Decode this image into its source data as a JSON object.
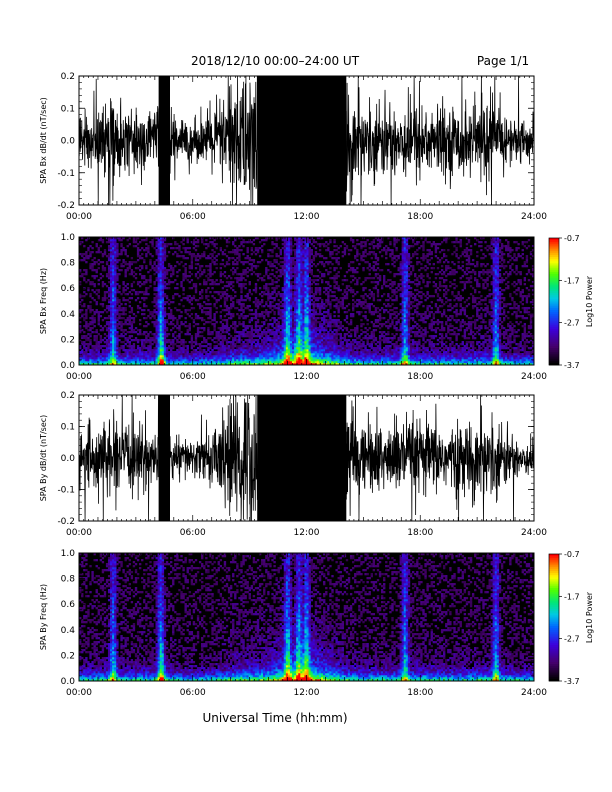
{
  "header": {
    "title": "2018/12/10   00:00–24:00 UT",
    "page": "Page 1/1"
  },
  "footer": {
    "xlabel": "Universal Time (hh:mm)"
  },
  "colorbar": {
    "label": "Log10 Power",
    "ticks": [
      "-0.7",
      "-1.7",
      "-2.7",
      "-3.7"
    ]
  },
  "chart_data": [
    {
      "type": "line",
      "title": "",
      "xlabel": "",
      "ylabel": "SPA Bx dB/dt (nT/sec)",
      "xlim": [
        0,
        24
      ],
      "ylim": [
        -0.2,
        0.2
      ],
      "x_ticks": [
        "00:00",
        "06:00",
        "12:00",
        "18:00",
        "24:00"
      ],
      "y_ticks": [
        "0.2",
        "0.1",
        "0.0",
        "-0.1",
        "-0.2"
      ],
      "series": [
        {
          "values": "dense time series of magnetic field rate of change, roughly ±0.1 nT/s, saturating at ±0.2 near 04:30 and 09:30–14:00 UT"
        }
      ]
    },
    {
      "type": "heatmap",
      "title": "",
      "xlabel": "",
      "ylabel": "SPA Bx Freq (Hz)",
      "xlim": [
        0,
        24
      ],
      "ylim": [
        0.0,
        1.0
      ],
      "x_ticks": [
        "00:00",
        "06:00",
        "12:00",
        "18:00",
        "24:00"
      ],
      "y_ticks": [
        "1.0",
        "0.8",
        "0.6",
        "0.4",
        "0.2",
        "0.0"
      ],
      "color_range": [
        -3.7,
        -0.7
      ],
      "color_label": "Log10 Power",
      "features": {
        "broadband_spikes_ut": [
          1.8,
          4.3,
          11.0,
          11.6,
          12.0,
          17.2,
          22.0
        ],
        "high_power_low_freq_ut": [
          4.3,
          9.5,
          12.5
        ]
      }
    },
    {
      "type": "line",
      "title": "",
      "xlabel": "",
      "ylabel": "SPA By dB/dt (nT/sec)",
      "xlim": [
        0,
        24
      ],
      "ylim": [
        -0.2,
        0.2
      ],
      "x_ticks": [
        "00:00",
        "06:00",
        "12:00",
        "18:00",
        "24:00"
      ],
      "y_ticks": [
        "0.2",
        "0.1",
        "0.0",
        "-0.1",
        "-0.2"
      ],
      "series": [
        {
          "values": "dense time series of magnetic field rate of change, roughly ±0.1 nT/s, saturating at ±0.2 near 04:30 and 09:30–14:00 UT"
        }
      ]
    },
    {
      "type": "heatmap",
      "title": "",
      "xlabel": "",
      "ylabel": "SPA By Freq (Hz)",
      "xlim": [
        0,
        24
      ],
      "ylim": [
        0.0,
        1.0
      ],
      "x_ticks": [
        "00:00",
        "06:00",
        "12:00",
        "18:00",
        "24:00"
      ],
      "y_ticks": [
        "1.0",
        "0.8",
        "0.6",
        "0.4",
        "0.2",
        "0.0"
      ],
      "color_range": [
        -3.7,
        -0.7
      ],
      "color_label": "Log10 Power",
      "features": {
        "broadband_spikes_ut": [
          1.8,
          4.3,
          11.0,
          11.6,
          12.0,
          17.2,
          22.0
        ],
        "high_power_low_freq_ut": [
          4.3,
          9.5,
          12.5
        ]
      }
    }
  ]
}
